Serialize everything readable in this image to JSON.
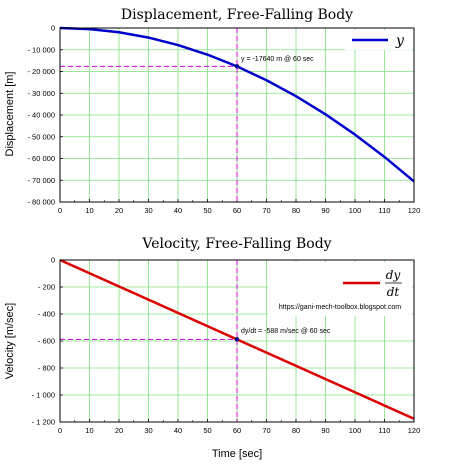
{
  "chart_data": [
    {
      "type": "line",
      "title": "Displacement,  Free-Falling Body",
      "ylabel": "Displacement [m]",
      "xlabel": "",
      "xlim": [
        0,
        120
      ],
      "ylim": [
        -80000,
        0
      ],
      "grid": true,
      "legend_position": "top-right",
      "x_ticks": [
        "0",
        "10",
        "20",
        "30",
        "40",
        "50",
        "60",
        "70",
        "80",
        "90",
        "100",
        "110",
        "120"
      ],
      "y_ticks": [
        "0",
        "- 10 000",
        "- 20 000",
        "- 30 000",
        "- 40 000",
        "- 50 000",
        "- 60 000",
        "- 70 000",
        "- 80 000"
      ],
      "series": [
        {
          "name": "y",
          "color": "#0000cc",
          "x": [
            0,
            10,
            20,
            30,
            40,
            50,
            60,
            70,
            80,
            90,
            100,
            110,
            120
          ],
          "y": [
            0,
            -490,
            -1960,
            -4410,
            -7840,
            -12250,
            -17640,
            -24010,
            -31360,
            -39690,
            -49000,
            -59290,
            -70560
          ]
        }
      ],
      "annotation": {
        "text": "y = -17640 m @ 60 sec",
        "x": 60,
        "y": -17640,
        "color": "#dd00dd"
      }
    },
    {
      "type": "line",
      "title": "Velocity,  Free-Falling Body",
      "ylabel": "Velocity [m/sec]",
      "xlabel": "Time [sec]",
      "xlim": [
        0,
        120
      ],
      "ylim": [
        -1200,
        0
      ],
      "grid": true,
      "legend_position": "top-right",
      "x_ticks": [
        "0",
        "10",
        "20",
        "30",
        "40",
        "50",
        "60",
        "70",
        "80",
        "90",
        "100",
        "110",
        "120"
      ],
      "y_ticks": [
        "0",
        "- 200",
        "- 400",
        "- 600",
        "- 800",
        "- 1 000",
        "- 1 200"
      ],
      "series": [
        {
          "name_num": "dy",
          "name_den": "dt",
          "color": "#dd0000",
          "x": [
            0,
            120
          ],
          "y": [
            0,
            -1176
          ]
        }
      ],
      "annotation": {
        "text": "dy/dt = -588 m/sec @ 60 sec",
        "x": 60,
        "y": -588,
        "color": "#dd00dd"
      },
      "watermark": "https://gani-mech-toolbox.blogspot.com"
    }
  ]
}
